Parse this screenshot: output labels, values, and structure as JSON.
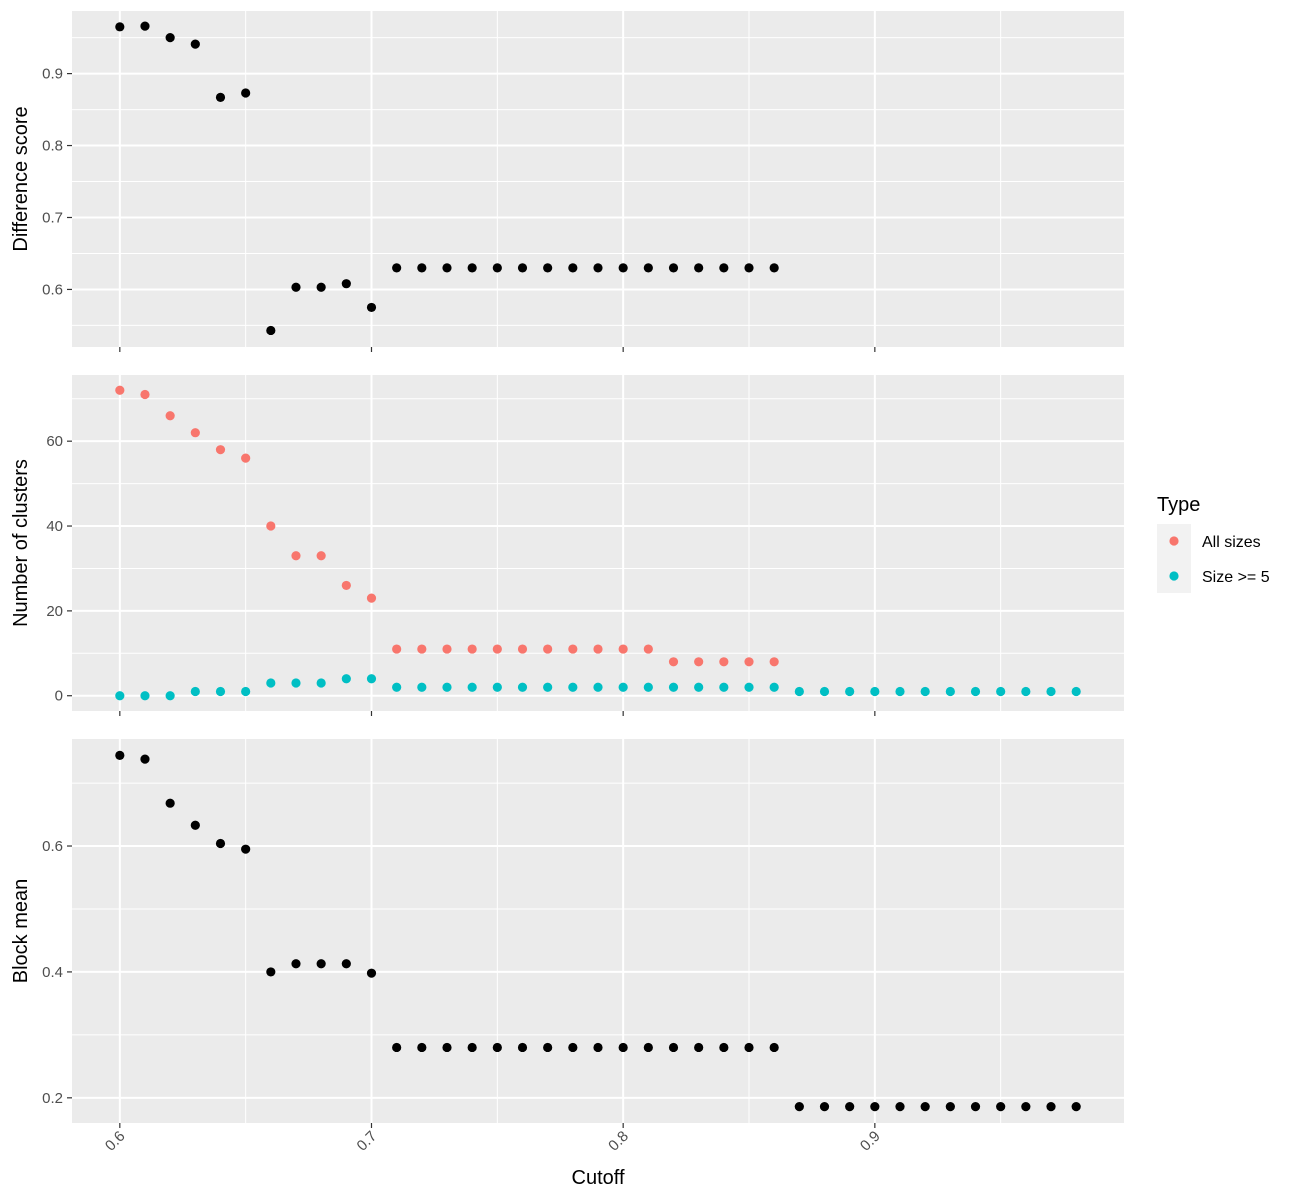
{
  "chart_data": [
    {
      "type": "scatter",
      "ylabel": "Difference score",
      "ylim": [
        0.52,
        0.987
      ],
      "yticks": [
        0.6,
        0.7,
        0.8,
        0.9
      ],
      "ytick_labels": [
        "0.6",
        "0.7",
        "0.8",
        "0.9"
      ],
      "grid": true,
      "series": [
        {
          "color": "#000000",
          "x": [
            0.6,
            0.61,
            0.62,
            0.63,
            0.64,
            0.65,
            0.66,
            0.67,
            0.68,
            0.69,
            0.7,
            0.71,
            0.72,
            0.73,
            0.74,
            0.75,
            0.76,
            0.77,
            0.78,
            0.79,
            0.8,
            0.81,
            0.82,
            0.83,
            0.84,
            0.85,
            0.86
          ],
          "y": [
            0.965,
            0.966,
            0.95,
            0.941,
            0.867,
            0.873,
            0.543,
            0.603,
            0.603,
            0.608,
            0.575,
            0.63,
            0.63,
            0.63,
            0.63,
            0.63,
            0.63,
            0.63,
            0.63,
            0.63,
            0.63,
            0.63,
            0.63,
            0.63,
            0.63,
            0.63,
            0.63
          ]
        }
      ]
    },
    {
      "type": "scatter",
      "ylabel": "Number of clusters",
      "ylim": [
        -3.6,
        75.6
      ],
      "yticks": [
        0,
        20,
        40,
        60
      ],
      "ytick_labels": [
        "0",
        "20",
        "40",
        "60"
      ],
      "grid": true,
      "legend": {
        "title": "Type",
        "position": "right"
      },
      "series": [
        {
          "name": "All sizes",
          "color": "#F8766D",
          "x": [
            0.6,
            0.61,
            0.62,
            0.63,
            0.64,
            0.65,
            0.66,
            0.67,
            0.68,
            0.69,
            0.7,
            0.71,
            0.72,
            0.73,
            0.74,
            0.75,
            0.76,
            0.77,
            0.78,
            0.79,
            0.8,
            0.81,
            0.82,
            0.83,
            0.84,
            0.85,
            0.86
          ],
          "y": [
            72,
            71,
            66,
            62,
            58,
            56,
            40,
            33,
            33,
            26,
            23,
            11,
            11,
            11,
            11,
            11,
            11,
            11,
            11,
            11,
            11,
            11,
            8,
            8,
            8,
            8,
            8
          ]
        },
        {
          "name": "Size >= 5",
          "color": "#00BFC4",
          "x": [
            0.6,
            0.61,
            0.62,
            0.63,
            0.64,
            0.65,
            0.66,
            0.67,
            0.68,
            0.69,
            0.7,
            0.71,
            0.72,
            0.73,
            0.74,
            0.75,
            0.76,
            0.77,
            0.78,
            0.79,
            0.8,
            0.81,
            0.82,
            0.83,
            0.84,
            0.85,
            0.86,
            0.87,
            0.88,
            0.89,
            0.9,
            0.91,
            0.92,
            0.93,
            0.94,
            0.95,
            0.96,
            0.97,
            0.98
          ],
          "y": [
            0,
            0,
            0,
            1,
            1,
            1,
            3,
            3,
            3,
            4,
            4,
            2,
            2,
            2,
            2,
            2,
            2,
            2,
            2,
            2,
            2,
            2,
            2,
            2,
            2,
            2,
            2,
            1,
            1,
            1,
            1,
            1,
            1,
            1,
            1,
            1,
            1,
            1,
            1
          ]
        }
      ]
    },
    {
      "type": "scatter",
      "xlabel": "Cutoff",
      "ylabel": "Block mean",
      "xlim": [
        0.581,
        0.999
      ],
      "xticks": [
        0.6,
        0.7,
        0.8,
        0.9
      ],
      "xtick_labels": [
        "0.6",
        "0.7",
        "0.8",
        "0.9"
      ],
      "ylim": [
        0.16,
        0.77
      ],
      "yticks": [
        0.2,
        0.4,
        0.6
      ],
      "ytick_labels": [
        "0.2",
        "0.4",
        "0.6"
      ],
      "grid": true,
      "series": [
        {
          "color": "#000000",
          "x": [
            0.6,
            0.61,
            0.62,
            0.63,
            0.64,
            0.65,
            0.66,
            0.67,
            0.68,
            0.69,
            0.7,
            0.71,
            0.72,
            0.73,
            0.74,
            0.75,
            0.76,
            0.77,
            0.78,
            0.79,
            0.8,
            0.81,
            0.82,
            0.83,
            0.84,
            0.85,
            0.86,
            0.87,
            0.88,
            0.89,
            0.9,
            0.91,
            0.92,
            0.93,
            0.94,
            0.95,
            0.96,
            0.97,
            0.98
          ],
          "y": [
            0.744,
            0.738,
            0.668,
            0.633,
            0.604,
            0.595,
            0.4,
            0.413,
            0.413,
            0.413,
            0.398,
            0.28,
            0.28,
            0.28,
            0.28,
            0.28,
            0.28,
            0.28,
            0.28,
            0.28,
            0.28,
            0.28,
            0.28,
            0.28,
            0.28,
            0.28,
            0.28,
            0.186,
            0.186,
            0.186,
            0.186,
            0.186,
            0.186,
            0.186,
            0.186,
            0.186,
            0.186,
            0.186,
            0.186
          ]
        }
      ]
    }
  ]
}
